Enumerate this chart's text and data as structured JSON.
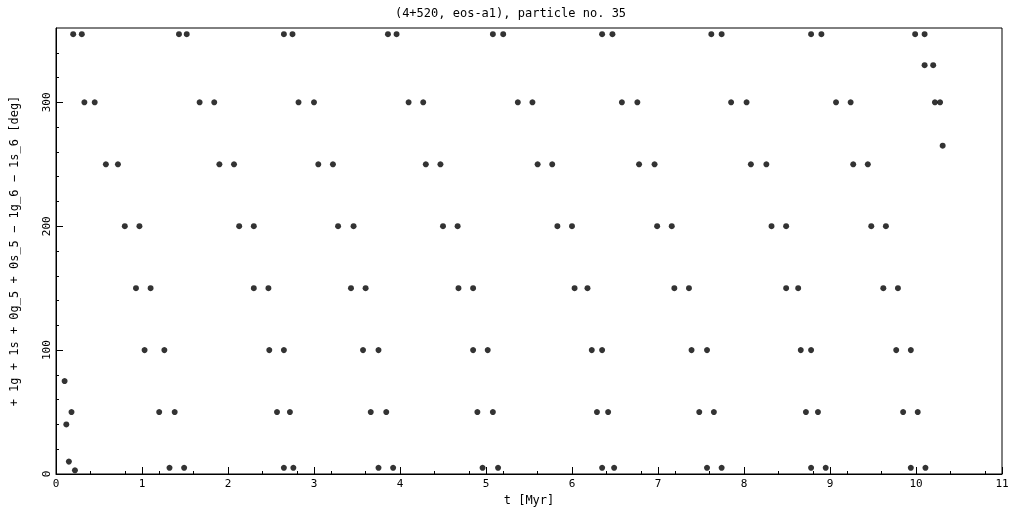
{
  "chart_data": {
    "type": "scatter",
    "title": "(4+520, eos-a1), particle no. 35",
    "xlabel": "t [Myr]",
    "ylabel": "+ 1g + 1s + 0g_5 + 0s_5 − 1g_6 − 1s_6 [deg]",
    "xlim": [
      0,
      11
    ],
    "xticks": [
      0,
      1,
      2,
      3,
      4,
      5,
      6,
      7,
      8,
      9,
      10,
      11
    ],
    "ylim": [
      0,
      360
    ],
    "yticks": [
      0,
      100,
      200,
      300
    ],
    "grid": false,
    "marker": "circle",
    "series": [
      {
        "color": "#000000",
        "x": [
          0.1,
          0.12,
          0.18,
          0.15,
          0.22,
          0.2,
          0.3,
          0.33,
          0.45,
          0.58,
          0.72,
          0.8,
          0.97,
          0.93,
          1.1,
          1.03,
          1.26,
          1.2,
          1.38,
          1.32,
          1.49,
          1.43,
          1.52,
          1.67,
          1.84,
          1.9,
          2.07,
          2.13,
          2.3,
          2.3,
          2.47,
          2.48,
          2.65,
          2.57,
          2.72,
          2.65,
          2.76,
          2.65,
          2.75,
          2.82,
          3.0,
          3.05,
          3.22,
          3.28,
          3.46,
          3.43,
          3.6,
          3.57,
          3.75,
          3.66,
          3.84,
          3.75,
          3.92,
          3.86,
          3.96,
          4.1,
          4.27,
          4.3,
          4.47,
          4.5,
          4.67,
          4.68,
          4.85,
          4.85,
          5.02,
          4.9,
          5.08,
          4.96,
          5.14,
          5.08,
          5.2,
          5.37,
          5.54,
          5.6,
          5.77,
          5.83,
          6.0,
          6.03,
          6.18,
          6.23,
          6.35,
          6.29,
          6.42,
          6.35,
          6.49,
          6.35,
          6.47,
          6.58,
          6.76,
          6.78,
          6.96,
          6.99,
          7.16,
          7.19,
          7.36,
          7.39,
          7.57,
          7.48,
          7.65,
          7.57,
          7.74,
          7.62,
          7.74,
          7.85,
          8.03,
          8.08,
          8.26,
          8.32,
          8.49,
          8.49,
          8.63,
          8.66,
          8.78,
          8.72,
          8.86,
          8.78,
          8.95,
          8.78,
          8.9,
          9.07,
          9.24,
          9.27,
          9.44,
          9.48,
          9.65,
          9.62,
          9.79,
          9.77,
          9.94,
          9.85,
          10.02,
          9.94,
          10.11,
          9.99,
          10.1,
          10.1,
          10.2,
          10.22,
          10.28,
          10.31
        ],
        "values": [
          75,
          40,
          50,
          10,
          3,
          355,
          355,
          300,
          300,
          250,
          250,
          200,
          200,
          150,
          150,
          100,
          100,
          50,
          50,
          5,
          5,
          355,
          355,
          300,
          300,
          250,
          250,
          200,
          200,
          150,
          150,
          100,
          100,
          50,
          50,
          5,
          5,
          355,
          355,
          300,
          300,
          250,
          250,
          200,
          200,
          150,
          150,
          100,
          100,
          50,
          50,
          5,
          5,
          355,
          355,
          300,
          300,
          250,
          250,
          200,
          200,
          150,
          150,
          100,
          100,
          50,
          50,
          5,
          5,
          355,
          355,
          300,
          300,
          250,
          250,
          200,
          200,
          150,
          150,
          100,
          100,
          50,
          50,
          5,
          5,
          355,
          355,
          300,
          300,
          250,
          250,
          200,
          200,
          150,
          150,
          100,
          100,
          50,
          50,
          5,
          5,
          355,
          355,
          300,
          300,
          250,
          250,
          200,
          200,
          150,
          150,
          100,
          100,
          50,
          50,
          5,
          5,
          355,
          355,
          300,
          300,
          250,
          250,
          200,
          200,
          150,
          150,
          100,
          100,
          50,
          50,
          5,
          5,
          355,
          355,
          330,
          330,
          300,
          300,
          265
        ]
      }
    ]
  }
}
